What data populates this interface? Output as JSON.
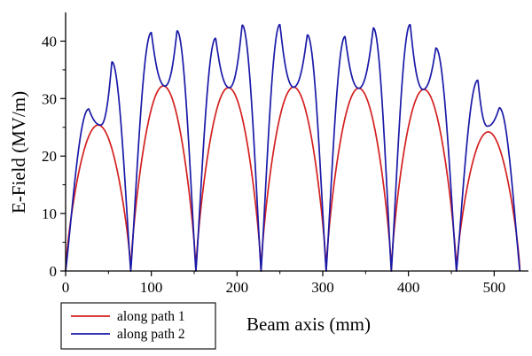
{
  "chart_data": {
    "type": "line",
    "xlabel": "Beam axis (mm)",
    "ylabel": "E-Field (MV/m)",
    "xlim": [
      0,
      540
    ],
    "ylim": [
      0,
      45
    ],
    "xticks": [
      0,
      100,
      200,
      300,
      400,
      500
    ],
    "yticks": [
      0,
      10,
      20,
      30,
      40
    ],
    "grid": false,
    "legend_position": "bottom-left",
    "series": [
      {
        "name": "along path 1",
        "color": "#d42020",
        "cells": [
          {
            "start": 0,
            "end": 76,
            "peaks": [
              [
                43,
                25.4
              ]
            ]
          },
          {
            "start": 76,
            "end": 152,
            "peaks": [
              [
                116,
                32.2
              ]
            ]
          },
          {
            "start": 152,
            "end": 228,
            "peaks": [
              [
                191,
                31.9
              ]
            ]
          },
          {
            "start": 228,
            "end": 304,
            "peaks": [
              [
                266,
                32.0
              ]
            ]
          },
          {
            "start": 304,
            "end": 380,
            "peaks": [
              [
                342,
                31.8
              ]
            ]
          },
          {
            "start": 380,
            "end": 456,
            "peaks": [
              [
                417,
                31.6
              ]
            ]
          },
          {
            "start": 456,
            "end": 530,
            "peaks": [
              [
                492,
                24.2
              ]
            ]
          }
        ]
      },
      {
        "name": "along path 2",
        "color": "#1a1aa8",
        "cells": [
          {
            "start": 0,
            "end": 76,
            "peaks": [
              [
                27,
                28.2
              ],
              [
                41,
                25.4
              ],
              [
                54,
                36.4
              ]
            ]
          },
          {
            "start": 76,
            "end": 152,
            "peaks": [
              [
                100,
                41.5
              ],
              [
                116,
                32.2
              ],
              [
                130,
                41.8
              ]
            ]
          },
          {
            "start": 152,
            "end": 228,
            "peaks": [
              [
                175,
                40.5
              ],
              [
                191,
                31.9
              ],
              [
                206,
                42.8
              ]
            ]
          },
          {
            "start": 228,
            "end": 304,
            "peaks": [
              [
                250,
                42.9
              ],
              [
                266,
                32.0
              ],
              [
                282,
                41.1
              ]
            ]
          },
          {
            "start": 304,
            "end": 380,
            "peaks": [
              [
                326,
                40.8
              ],
              [
                342,
                31.8
              ],
              [
                359,
                42.3
              ]
            ]
          },
          {
            "start": 380,
            "end": 456,
            "peaks": [
              [
                402,
                42.9
              ],
              [
                417,
                31.6
              ],
              [
                432,
                38.8
              ]
            ]
          },
          {
            "start": 456,
            "end": 530,
            "peaks": [
              [
                481,
                33.2
              ],
              [
                492,
                25.2
              ],
              [
                506,
                28.4
              ]
            ]
          }
        ]
      }
    ]
  }
}
